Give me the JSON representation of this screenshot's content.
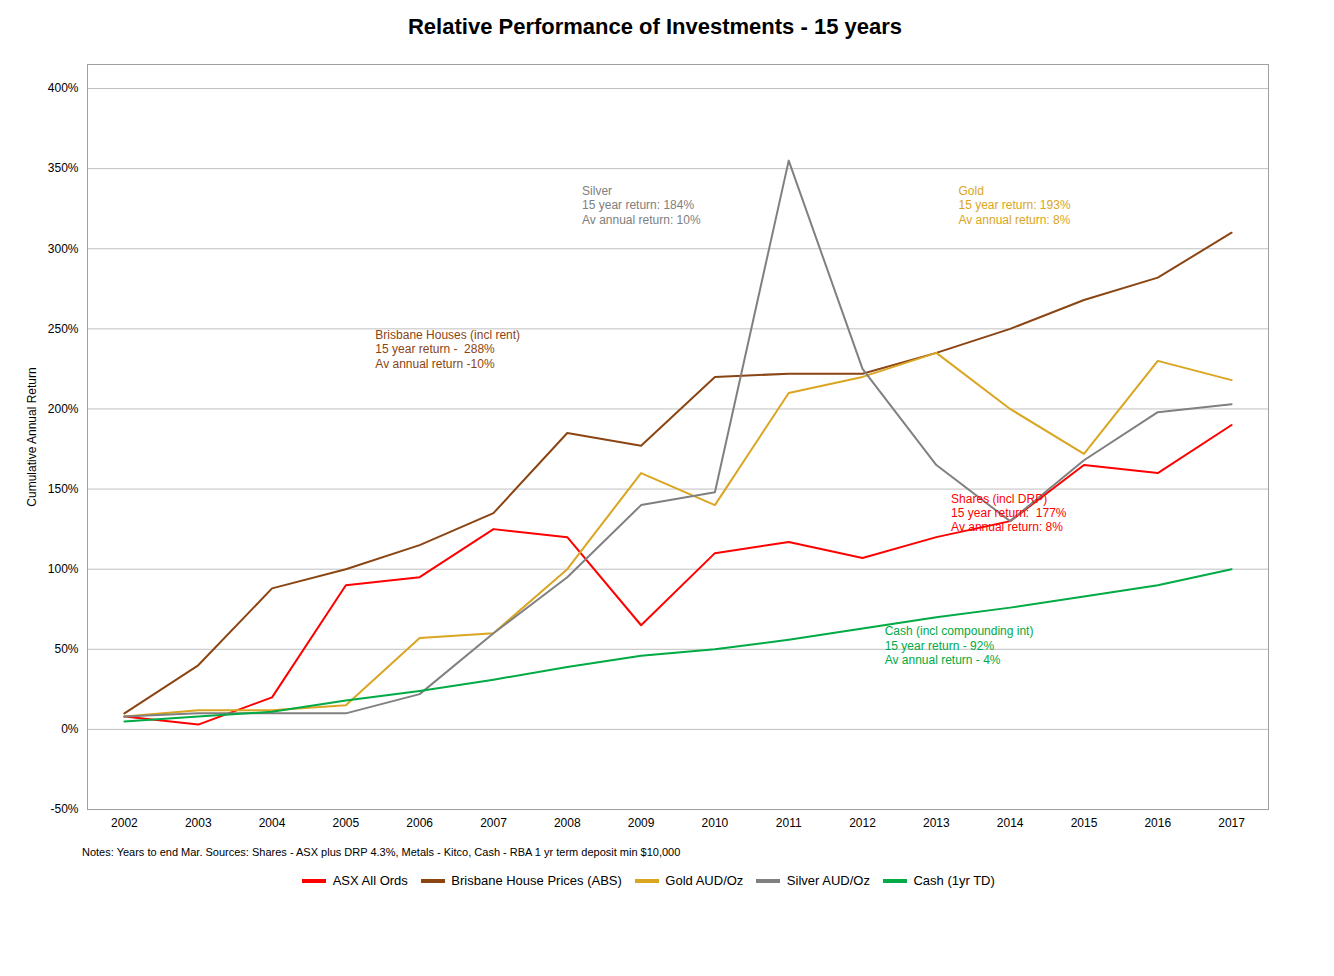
{
  "chart_data": {
    "type": "line",
    "title": "Relative Performance of Investments - 15 years",
    "ylabel": "Cumulative Annual Return",
    "x": [
      2002,
      2003,
      2004,
      2005,
      2006,
      2007,
      2008,
      2009,
      2010,
      2011,
      2012,
      2013,
      2014,
      2015,
      2016,
      2017
    ],
    "series": [
      {
        "name": "ASX All Ords",
        "color": "#FF0000",
        "values": [
          8,
          3,
          20,
          90,
          95,
          125,
          120,
          65,
          110,
          117,
          107,
          120,
          130,
          165,
          160,
          190
        ]
      },
      {
        "name": "Brisbane House Prices (ABS)",
        "color": "#8B4513",
        "values": [
          10,
          40,
          88,
          100,
          115,
          135,
          185,
          177,
          220,
          222,
          222,
          235,
          250,
          268,
          282,
          310
        ]
      },
      {
        "name": "Gold AUD/Oz",
        "color": "#DAA520",
        "values": [
          8,
          12,
          12,
          15,
          57,
          60,
          100,
          160,
          140,
          210,
          220,
          235,
          200,
          172,
          230,
          218
        ]
      },
      {
        "name": "Silver AUD/Oz",
        "color": "#808080",
        "values": [
          8,
          10,
          10,
          10,
          22,
          60,
          95,
          140,
          148,
          355,
          225,
          165,
          130,
          168,
          198,
          203
        ]
      },
      {
        "name": "Cash (1yr TD)",
        "color": "#00AA44",
        "values": [
          5,
          8,
          11,
          18,
          24,
          31,
          39,
          46,
          50,
          56,
          63,
          70,
          76,
          83,
          90,
          100
        ]
      }
    ],
    "xlim": [
      2001.5,
      2017.5
    ],
    "xticks": [
      2002,
      2003,
      2004,
      2005,
      2006,
      2007,
      2008,
      2009,
      2010,
      2011,
      2012,
      2013,
      2014,
      2015,
      2016,
      2017
    ],
    "ylim": [
      -50,
      415
    ],
    "yticks": [
      {
        "value": -50,
        "label": "-50%"
      },
      {
        "value": 0,
        "label": "0%"
      },
      {
        "value": 50,
        "label": "50%"
      },
      {
        "value": 100,
        "label": "100%"
      },
      {
        "value": 150,
        "label": "150%"
      },
      {
        "value": 200,
        "label": "200%"
      },
      {
        "value": 250,
        "label": "250%"
      },
      {
        "value": 300,
        "label": "300%"
      },
      {
        "value": 350,
        "label": "350%"
      },
      {
        "value": 400,
        "label": "400%"
      }
    ],
    "grid": true,
    "legend": "bottom",
    "annotations": [
      {
        "x": 2008.2,
        "y": 340,
        "text": "Silver\n15 year return: 184%\nAv annual return: 10%",
        "color": "#808080"
      },
      {
        "x": 2013.3,
        "y": 340,
        "text": "Gold\n15 year return: 193%\nAv annual return: 8%",
        "color": "#DAA520"
      },
      {
        "x": 2005.4,
        "y": 250,
        "text": "Brisbane Houses (incl rent)\n15 year return -  288%\nAv annual return -10%",
        "color": "#8B4513"
      },
      {
        "x": 2013.2,
        "y": 148,
        "text": "Shares (incl DRP)\n15 year return:  177%\nAv annual return: 8%",
        "color": "#FF0000"
      },
      {
        "x": 2012.3,
        "y": 65,
        "text": "Cash (incl compounding int)\n15 year return - 92%\nAv annual return - 4%",
        "color": "#00AA44"
      }
    ],
    "note": "Notes: Years to  end Mar.  Sources: Shares - ASX plus DRP 4.3%, Metals -  Kitco, Cash - RBA 1 yr term deposit min $10,000"
  }
}
